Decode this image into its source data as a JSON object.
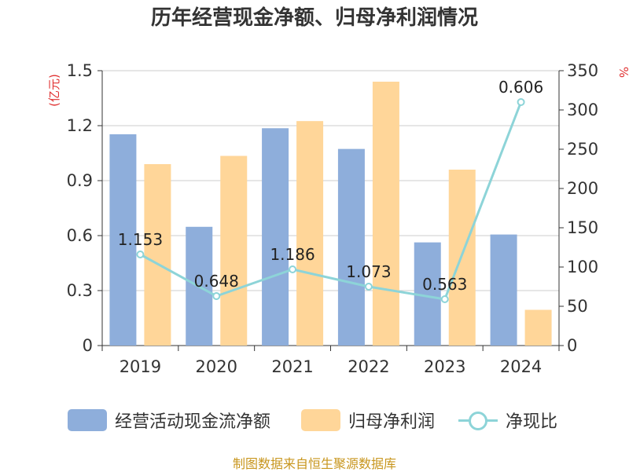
{
  "chart_data": {
    "type": "bar",
    "title": "历年经营现金净额、归母净利润情况",
    "categories": [
      "2019",
      "2020",
      "2021",
      "2022",
      "2023",
      "2024"
    ],
    "left_axis": {
      "unit": "(亿元)",
      "ylim": [
        0,
        1.5
      ],
      "ticks": [
        "0",
        "0.3",
        "0.6",
        "0.9",
        "1.2",
        "1.5"
      ]
    },
    "right_axis": {
      "unit": "%",
      "ylim": [
        0,
        350
      ],
      "ticks": [
        "0",
        "50",
        "100",
        "150",
        "200",
        "250",
        "300",
        "350"
      ]
    },
    "series": [
      {
        "name": "经营活动现金流净额",
        "type": "bar",
        "axis": "left",
        "color": "#8eaedb",
        "values": [
          1.153,
          0.648,
          1.186,
          1.073,
          0.563,
          0.606
        ],
        "labels": [
          "1.153",
          "0.648",
          "1.186",
          "1.073",
          "0.563",
          "0.606"
        ]
      },
      {
        "name": "归母净利润",
        "type": "bar",
        "axis": "left",
        "color": "#ffd699",
        "values": [
          0.99,
          1.035,
          1.225,
          1.44,
          0.96,
          0.195
        ]
      },
      {
        "name": "净现比",
        "type": "line",
        "axis": "right",
        "color": "#8dd4d8",
        "values": [
          116,
          63,
          97,
          75,
          59,
          310
        ]
      }
    ],
    "grid": true,
    "legend": "bottom"
  },
  "source": "制图数据来自恒生聚源数据库"
}
